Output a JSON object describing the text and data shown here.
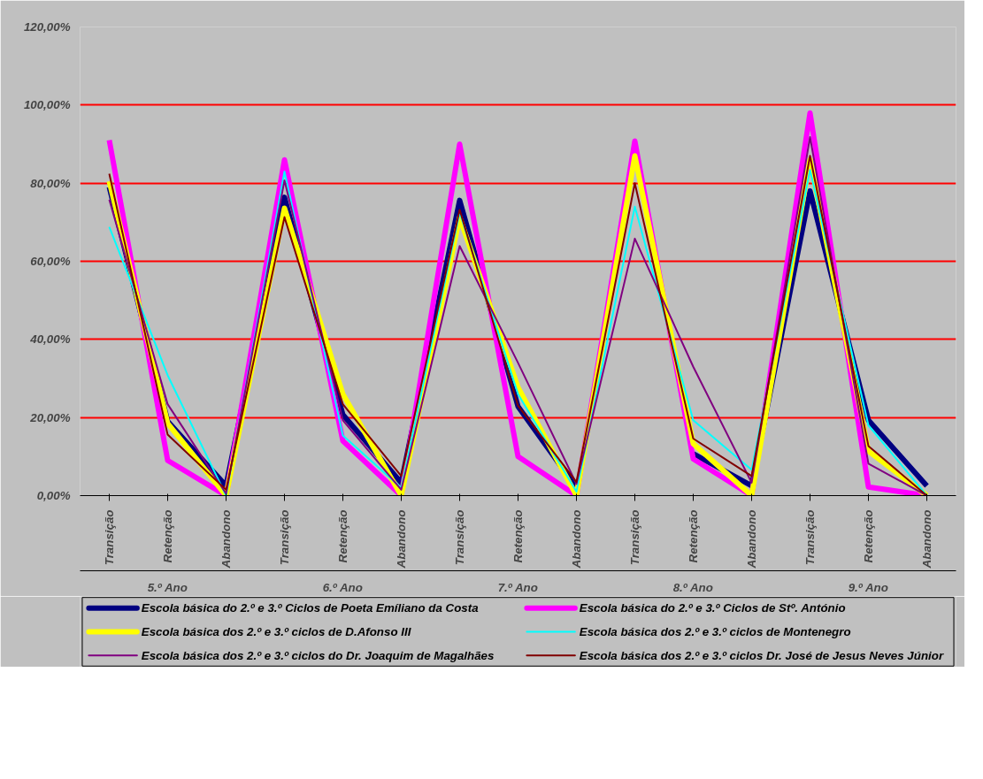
{
  "chart_data": {
    "type": "line",
    "categories": [
      "Transição",
      "Retenção",
      "Abandono",
      "Transição",
      "Retenção",
      "Abandono",
      "Transição",
      "Retenção",
      "Abandono",
      "Transição",
      "Retenção",
      "Abandono",
      "Transição",
      "Retenção",
      "Abandono"
    ],
    "annotations": [
      "5.º Ano",
      "6.º Ano",
      "7.º Ano",
      "8.º Ano",
      "9.º Ano"
    ],
    "series": [
      {
        "name": "Escola básica do 2.º e 3.º Ciclos de Poeta Emíliano da Costa",
        "color": "#000080",
        "values": [
          79,
          19,
          2.5,
          76.4,
          20.7,
          3.3,
          75.6,
          22.8,
          2,
          null,
          10.7,
          2.5,
          78,
          19.3,
          2.5
        ]
      },
      {
        "name": "Escola básica do 2.º e 3.º Ciclos de Stº. António",
        "color": "#ff00ff",
        "values": [
          91,
          9,
          0,
          86,
          14,
          0,
          90,
          10,
          0,
          90.8,
          9.4,
          0,
          98,
          2.2,
          0
        ]
      },
      {
        "name": "Escola básica dos 2.º e 3.º ciclos de D.Afonso III",
        "color": "#ffff00",
        "values": [
          80.5,
          18.5,
          0,
          73.6,
          26,
          0,
          71.3,
          27.7,
          0,
          87,
          13.3,
          0,
          86,
          11.4,
          0
        ]
      },
      {
        "name": "Escola básica dos 2.º e 3.º ciclos de Montenegro",
        "color": "#00ffff",
        "values": [
          68.8,
          30.8,
          0,
          83,
          15.4,
          2,
          72.5,
          26,
          1,
          74,
          19.3,
          6.6,
          83.4,
          18,
          0
        ]
      },
      {
        "name": "Escola básica dos 2.º e 3.º ciclos do Dr. Joaquim de Magalhães",
        "color": "#800080",
        "values": [
          75.8,
          23.4,
          0.5,
          80.7,
          19.3,
          1.5,
          63.9,
          34,
          3,
          65.8,
          33,
          3.3,
          91.8,
          8.2,
          0
        ]
      },
      {
        "name": "Escola básica dos 2.º e 3.º ciclos Dr. José de Jesus Neves Júnior",
        "color": "#800000",
        "values": [
          82.4,
          15.6,
          1.5,
          71.3,
          23.4,
          5,
          73.2,
          23,
          3.5,
          80,
          14.6,
          5,
          87,
          12.7,
          0
        ]
      }
    ],
    "ylim": [
      0,
      120
    ],
    "yticks": [
      {
        "value": 0,
        "label": "0,00%"
      },
      {
        "value": 20,
        "label": "20,00%"
      },
      {
        "value": 40,
        "label": "40,00%"
      },
      {
        "value": 60,
        "label": "60,00%"
      },
      {
        "value": 80,
        "label": "80,00%"
      },
      {
        "value": 100,
        "label": "100,00%"
      },
      {
        "value": 120,
        "label": "120,00%"
      }
    ],
    "grid": "y",
    "legend": "bottom",
    "marker": "none",
    "line_style": "solid"
  }
}
